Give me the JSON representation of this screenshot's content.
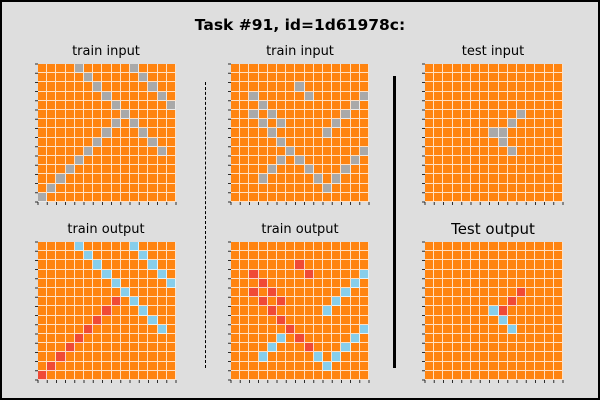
{
  "title": "Task #91, id=1d61978c:",
  "colors": {
    "background": "#ff8410",
    "gray": "#a9a9a9",
    "blue": "#87ceeb",
    "red": "#f04a36",
    "grid_line": "#ffffff"
  },
  "panels": [
    {
      "id": "train-input-1",
      "label": "train input",
      "label_size": "normal",
      "rows": 15,
      "cols": 15,
      "cells": [
        [
          0,
          4,
          "gray"
        ],
        [
          0,
          10,
          "gray"
        ],
        [
          1,
          5,
          "gray"
        ],
        [
          1,
          11,
          "gray"
        ],
        [
          2,
          6,
          "gray"
        ],
        [
          2,
          12,
          "gray"
        ],
        [
          3,
          7,
          "gray"
        ],
        [
          3,
          13,
          "gray"
        ],
        [
          4,
          8,
          "gray"
        ],
        [
          4,
          14,
          "gray"
        ],
        [
          5,
          9,
          "gray"
        ],
        [
          5,
          15,
          "gray"
        ],
        [
          6,
          10,
          "gray"
        ],
        [
          6,
          8,
          "gray"
        ],
        [
          7,
          11,
          "gray"
        ],
        [
          7,
          7,
          "gray"
        ],
        [
          8,
          12,
          "gray"
        ],
        [
          8,
          6,
          "gray"
        ],
        [
          9,
          13,
          "gray"
        ],
        [
          9,
          5,
          "gray"
        ],
        [
          10,
          4,
          "gray"
        ],
        [
          11,
          3,
          "gray"
        ],
        [
          12,
          2,
          "gray"
        ],
        [
          13,
          1,
          "gray"
        ],
        [
          14,
          0,
          "gray"
        ]
      ]
    },
    {
      "id": "train-input-2",
      "label": "train input",
      "label_size": "normal",
      "rows": 15,
      "cols": 15,
      "cells": [
        [
          2,
          7,
          "gray"
        ],
        [
          2,
          15,
          "gray"
        ],
        [
          3,
          2,
          "gray"
        ],
        [
          3,
          8,
          "gray"
        ],
        [
          3,
          14,
          "gray"
        ],
        [
          4,
          3,
          "gray"
        ],
        [
          4,
          13,
          "gray"
        ],
        [
          5,
          2,
          "gray"
        ],
        [
          5,
          4,
          "gray"
        ],
        [
          5,
          12,
          "gray"
        ],
        [
          6,
          3,
          "gray"
        ],
        [
          6,
          5,
          "gray"
        ],
        [
          6,
          11,
          "gray"
        ],
        [
          7,
          4,
          "gray"
        ],
        [
          7,
          10,
          "gray"
        ],
        [
          8,
          5,
          "gray"
        ],
        [
          9,
          6,
          "gray"
        ],
        [
          9,
          14,
          "gray"
        ],
        [
          10,
          5,
          "gray"
        ],
        [
          10,
          7,
          "gray"
        ],
        [
          10,
          13,
          "gray"
        ],
        [
          11,
          4,
          "gray"
        ],
        [
          11,
          8,
          "gray"
        ],
        [
          11,
          12,
          "gray"
        ],
        [
          12,
          3,
          "gray"
        ],
        [
          12,
          9,
          "gray"
        ],
        [
          12,
          11,
          "gray"
        ],
        [
          13,
          10,
          "gray"
        ]
      ]
    },
    {
      "id": "test-input",
      "label": "test input",
      "label_size": "normal",
      "rows": 15,
      "cols": 15,
      "cells": [
        [
          5,
          10,
          "gray"
        ],
        [
          6,
          9,
          "gray"
        ],
        [
          7,
          7,
          "gray"
        ],
        [
          7,
          8,
          "gray"
        ],
        [
          8,
          8,
          "gray"
        ],
        [
          9,
          9,
          "gray"
        ]
      ]
    },
    {
      "id": "train-output-1",
      "label": "train output",
      "label_size": "normal",
      "rows": 15,
      "cols": 15,
      "cells": [
        [
          0,
          4,
          "blue"
        ],
        [
          0,
          10,
          "blue"
        ],
        [
          1,
          5,
          "blue"
        ],
        [
          1,
          11,
          "blue"
        ],
        [
          2,
          6,
          "blue"
        ],
        [
          2,
          12,
          "blue"
        ],
        [
          3,
          7,
          "blue"
        ],
        [
          3,
          13,
          "blue"
        ],
        [
          4,
          8,
          "blue"
        ],
        [
          4,
          14,
          "blue"
        ],
        [
          5,
          9,
          "blue"
        ],
        [
          5,
          15,
          "blue"
        ],
        [
          6,
          10,
          "blue"
        ],
        [
          6,
          8,
          "red"
        ],
        [
          7,
          11,
          "blue"
        ],
        [
          7,
          7,
          "red"
        ],
        [
          8,
          12,
          "blue"
        ],
        [
          8,
          6,
          "red"
        ],
        [
          9,
          13,
          "blue"
        ],
        [
          9,
          5,
          "red"
        ],
        [
          10,
          4,
          "red"
        ],
        [
          11,
          3,
          "red"
        ],
        [
          12,
          2,
          "red"
        ],
        [
          13,
          1,
          "red"
        ],
        [
          14,
          0,
          "red"
        ]
      ]
    },
    {
      "id": "train-output-2",
      "label": "train output",
      "label_size": "normal",
      "rows": 15,
      "cols": 15,
      "cells": [
        [
          2,
          7,
          "red"
        ],
        [
          2,
          15,
          "blue"
        ],
        [
          3,
          2,
          "red"
        ],
        [
          3,
          8,
          "red"
        ],
        [
          3,
          14,
          "blue"
        ],
        [
          4,
          3,
          "red"
        ],
        [
          4,
          13,
          "blue"
        ],
        [
          5,
          2,
          "red"
        ],
        [
          5,
          4,
          "red"
        ],
        [
          5,
          12,
          "blue"
        ],
        [
          6,
          3,
          "red"
        ],
        [
          6,
          5,
          "red"
        ],
        [
          6,
          11,
          "blue"
        ],
        [
          7,
          4,
          "red"
        ],
        [
          7,
          10,
          "blue"
        ],
        [
          8,
          5,
          "red"
        ],
        [
          9,
          6,
          "red"
        ],
        [
          9,
          14,
          "blue"
        ],
        [
          10,
          5,
          "blue"
        ],
        [
          10,
          7,
          "red"
        ],
        [
          10,
          13,
          "blue"
        ],
        [
          11,
          4,
          "blue"
        ],
        [
          11,
          8,
          "red"
        ],
        [
          11,
          12,
          "blue"
        ],
        [
          12,
          3,
          "blue"
        ],
        [
          12,
          9,
          "blue"
        ],
        [
          12,
          11,
          "blue"
        ],
        [
          13,
          10,
          "blue"
        ]
      ]
    },
    {
      "id": "test-output",
      "label": "Test output",
      "label_size": "big",
      "rows": 15,
      "cols": 15,
      "cells": [
        [
          5,
          10,
          "red"
        ],
        [
          6,
          9,
          "red"
        ],
        [
          7,
          7,
          "blue"
        ],
        [
          7,
          8,
          "red"
        ],
        [
          8,
          8,
          "blue"
        ],
        [
          9,
          9,
          "blue"
        ]
      ]
    }
  ]
}
